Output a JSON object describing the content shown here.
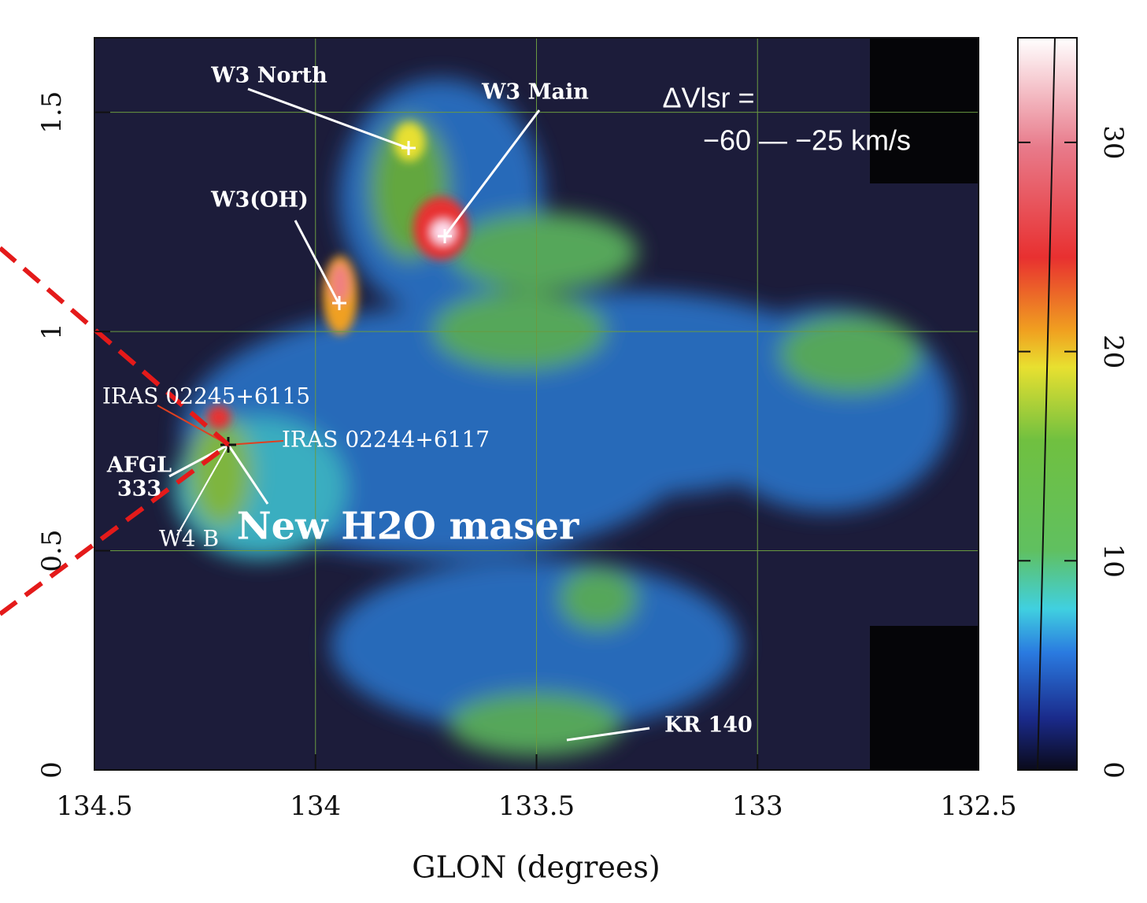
{
  "chart_data": {
    "type": "image",
    "xlabel": "GLON (degrees)",
    "xlim": [
      134.5,
      132.5
    ],
    "xticks": [
      134.5,
      134,
      133.5,
      133,
      132.5
    ],
    "ylim": [
      0,
      1.67
    ],
    "yticks": [
      0,
      0.5,
      1,
      1.5
    ],
    "grid": true,
    "colorbar": {
      "lim": [
        0,
        35
      ],
      "ticks": [
        0,
        10,
        20,
        30
      ]
    },
    "annotations": [
      "W3 North",
      "W3 Main",
      "W3(OH)",
      "IRAS 02245+6115",
      "IRAS 02244+6117",
      "AFGL",
      "333",
      "W4 B",
      "New H2O maser",
      "KR 140",
      "ΔVlsr =",
      "−60 — −25 km/s"
    ]
  }
}
